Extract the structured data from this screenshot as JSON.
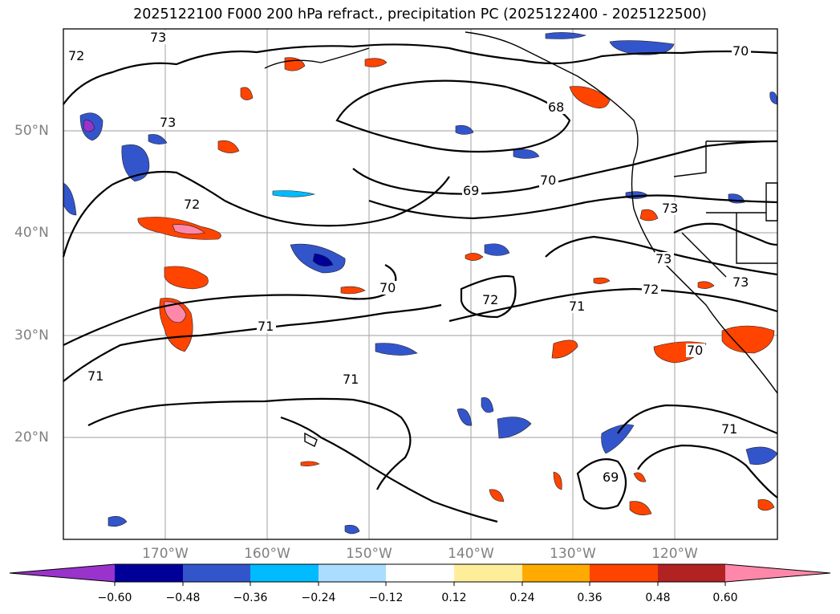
{
  "title": "2025122100 F000 200 hPa refract., precipitation PC (2025122400 - 2025122500)",
  "map": {
    "lat_labels": [
      "50°N",
      "40°N",
      "30°N",
      "20°N"
    ],
    "lon_labels": [
      "170°W",
      "160°W",
      "150°W",
      "140°W",
      "130°W",
      "120°W"
    ],
    "contour_labels": [
      "72",
      "73",
      "73",
      "68",
      "70",
      "69",
      "70",
      "72",
      "73",
      "73",
      "73",
      "72",
      "70",
      "72",
      "71",
      "71",
      "71",
      "71",
      "70",
      "71",
      "69"
    ]
  },
  "colorbar": {
    "colors": [
      "#9933cc",
      "#000099",
      "#3355cc",
      "#00bbff",
      "#aaddff",
      "#ffffff",
      "#ffee99",
      "#ffaa00",
      "#ff4400",
      "#b22222",
      "#ff88aa"
    ],
    "tick_labels": [
      "−0.60",
      "−0.48",
      "−0.36",
      "−0.24",
      "−0.12",
      "0.12",
      "0.24",
      "0.36",
      "0.48",
      "0.60"
    ]
  }
}
